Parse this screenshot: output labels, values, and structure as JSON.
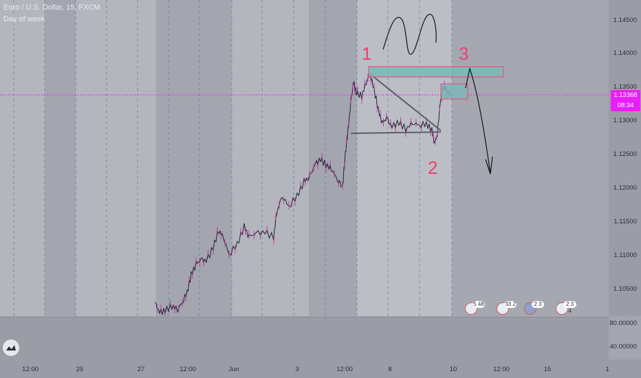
{
  "header": {
    "title": "Euro / U.S. Dollar, 15, FXCM",
    "indicator": "Day of week"
  },
  "price_axis": {
    "labels": [
      "1.14500",
      "1.14000",
      "1.13500",
      "1.13000",
      "1.12500",
      "1.12000",
      "1.11500",
      "1.11000",
      "1.10500"
    ],
    "current_price": "1.13368",
    "countdown": "08:34"
  },
  "indicator_axis": {
    "labels": [
      "80.00000",
      "40.00000"
    ]
  },
  "time_axis": {
    "labels": [
      "12:00",
      "25",
      "27",
      "12:00",
      "Jun",
      "3",
      "12:00",
      "8",
      "10",
      "12:00",
      "15",
      "1"
    ]
  },
  "annotations": {
    "point1": "1",
    "point2": "2",
    "point3": "3"
  },
  "events": [
    {
      "count": "5 48"
    },
    {
      "count": "33 2"
    },
    {
      "count": "2 3"
    },
    {
      "count": "2 3 4"
    }
  ],
  "colors": {
    "pink_line": "#e91ef7",
    "annotation_red": "#ef3f6f",
    "zone_fill": "#7fb6b8"
  }
}
